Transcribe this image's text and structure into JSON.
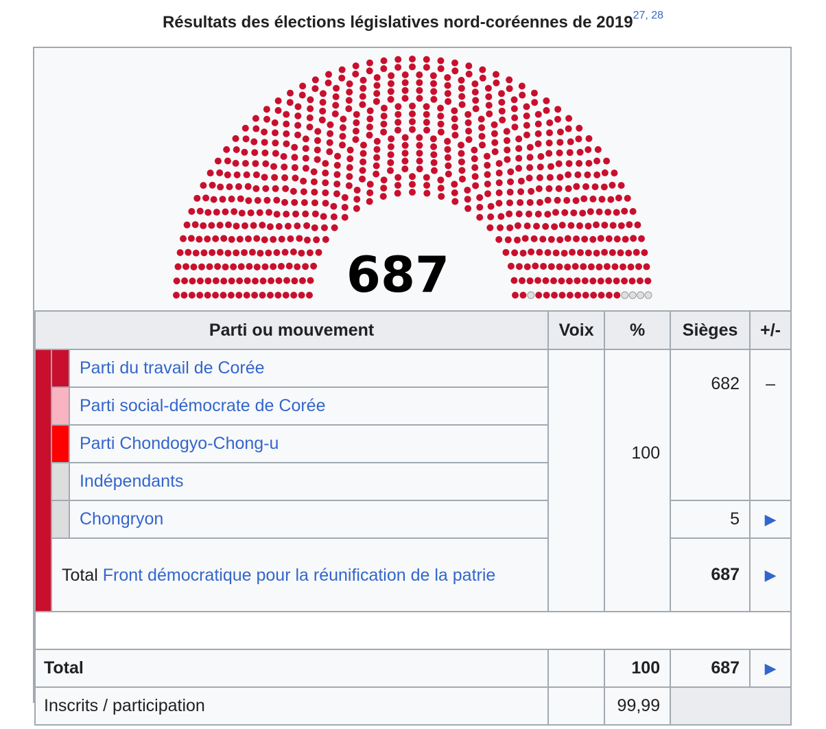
{
  "caption": {
    "title": "Résultats des élections législatives nord-coréennes de 2019",
    "refs": "27, 28"
  },
  "chart_data": {
    "type": "parliament",
    "total_label": "687",
    "total_seats": 687,
    "segments": [
      {
        "name": "Front démocratique pour la réunification de la patrie",
        "seats": 682,
        "color": "#c8102e"
      },
      {
        "name": "Chongryon",
        "seats": 5,
        "color": "#e0e0e0"
      }
    ]
  },
  "table": {
    "headers": {
      "party": "Parti ou mouvement",
      "votes": "Voix",
      "pct": "%",
      "seats": "Sièges",
      "change": "+/-"
    },
    "front_color": "#c8102e",
    "parties": [
      {
        "name": "Parti du travail de Corée",
        "color": "#c8102e"
      },
      {
        "name": "Parti social-démocrate de Corée",
        "color": "#f9b3c1"
      },
      {
        "name": "Parti Chondogyo-Chong-u",
        "color": "#ff0000"
      },
      {
        "name": "Indépendants",
        "color": "#dddddd"
      },
      {
        "name": "Chongryon",
        "color": "#dddddd"
      }
    ],
    "front_pct": "100",
    "group_seats": "682",
    "group_change": "–",
    "chongryon_seats": "5",
    "arrow": "▶",
    "front_total_prefix": "Total",
    "front_total_name": "Front démocratique pour la réunification de la patrie",
    "front_total_seats": "687",
    "total": {
      "label": "Total",
      "pct": "100",
      "seats": "687"
    },
    "turnout": {
      "label": "Inscrits / participation",
      "pct": "99,99"
    }
  }
}
